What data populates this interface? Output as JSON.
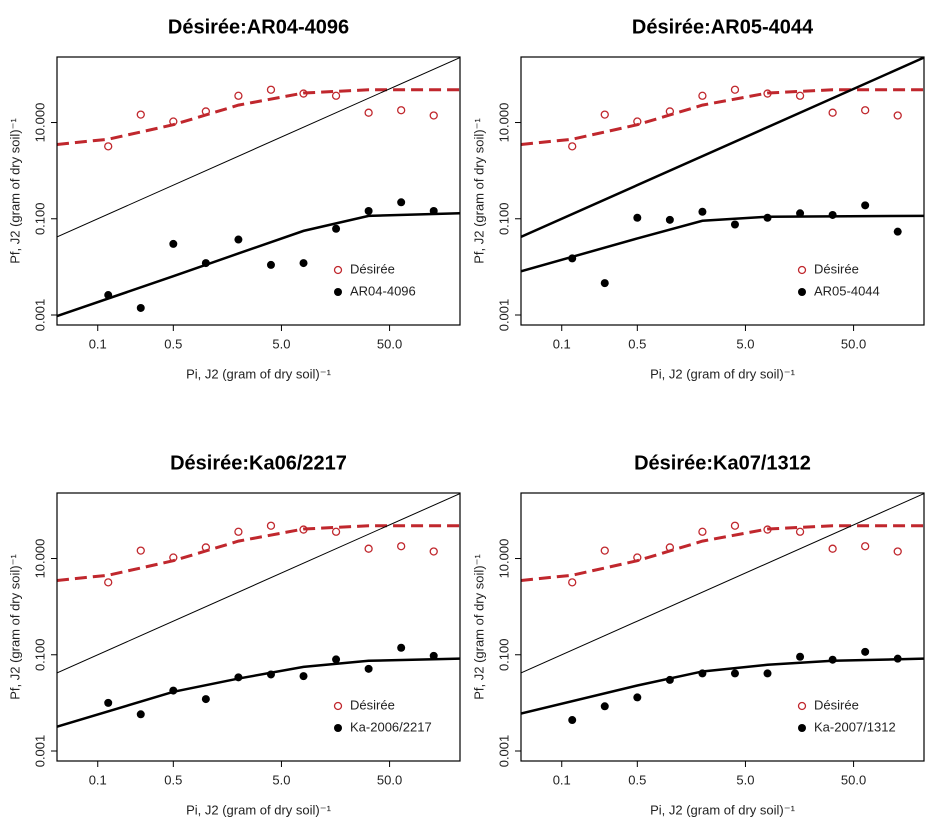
{
  "chart_data": [
    {
      "type": "scatter",
      "title": "Désirée:AR04-4096",
      "xlabel": "Pi, J2 (gram of dry soil)⁻¹",
      "ylabel": "Pf, J2 (gram of dry soil)⁻¹",
      "xscale": "log",
      "yscale": "log",
      "xlim": [
        0.042,
        224
      ],
      "ylim": [
        0.00062,
        230
      ],
      "xticks": [
        0.1,
        0.5,
        {
          "value": 5,
          "label": "5.0"
        },
        {
          "value": 50,
          "label": "50.0"
        }
      ],
      "yticks": [
        0.001,
        {
          "value": 0.1,
          "label": "0.100"
        },
        {
          "value": 10,
          "label": "10.000"
        }
      ],
      "legend": "bottom-right",
      "x": [
        0.125,
        0.25,
        0.5,
        1,
        2,
        4,
        8,
        16,
        32,
        64,
        128
      ],
      "series": [
        {
          "name": "Désirée",
          "color": "#c0272d",
          "marker": "open",
          "values": [
            3.2,
            14.6,
            10.5,
            17,
            36,
            48,
            40,
            36,
            16,
            18,
            14
          ]
        },
        {
          "name": "AR04-4096",
          "color": "#000000",
          "marker": "filled",
          "values": [
            0.0026,
            0.0014,
            0.03,
            0.012,
            0.037,
            0.011,
            0.012,
            0.062,
            0.145,
            0.22,
            0.145
          ]
        }
      ],
      "curves": [
        {
          "color": "#c0272d",
          "dash": true,
          "width": 3,
          "x": [
            0.042,
            0.125,
            0.5,
            2,
            8,
            32,
            224
          ],
          "values": [
            3.5,
            4.5,
            9,
            23,
            41,
            48,
            48
          ]
        },
        {
          "color": "#000000",
          "dash": false,
          "width": 2.5,
          "x": [
            0.042,
            0.5,
            2,
            8,
            32,
            224
          ],
          "values": [
            0.00095,
            0.0064,
            0.019,
            0.056,
            0.115,
            0.13
          ]
        },
        {
          "color": "#000000",
          "dash": false,
          "width": 1,
          "x": [
            0.042,
            224
          ],
          "values": [
            0.042,
            224
          ]
        }
      ]
    },
    {
      "type": "scatter",
      "title": "Désirée:AR05-4044",
      "xlabel": "Pi, J2 (gram of dry soil)⁻¹",
      "ylabel": "Pf, J2 (gram of dry soil)⁻¹",
      "xscale": "log",
      "yscale": "log",
      "xlim": [
        0.042,
        224
      ],
      "ylim": [
        0.00062,
        230
      ],
      "xticks": [
        0.1,
        0.5,
        {
          "value": 5,
          "label": "5.0"
        },
        {
          "value": 50,
          "label": "50.0"
        }
      ],
      "yticks": [
        0.001,
        {
          "value": 0.1,
          "label": "0.100"
        },
        {
          "value": 10,
          "label": "10.000"
        }
      ],
      "legend": "bottom-right",
      "x": [
        0.125,
        0.25,
        0.5,
        1,
        2,
        4,
        8,
        16,
        32,
        64,
        128
      ],
      "series": [
        {
          "name": "Désirée",
          "color": "#c0272d",
          "marker": "open",
          "values": [
            3.2,
            14.6,
            10.5,
            17,
            36,
            48,
            40,
            36,
            16,
            18,
            14
          ]
        },
        {
          "name": "AR05-4044",
          "color": "#000000",
          "marker": "filled",
          "values": [
            0.015,
            0.0046,
            0.105,
            0.095,
            0.14,
            0.076,
            0.105,
            0.13,
            0.12,
            0.19,
            0.054
          ]
        }
      ],
      "curves": [
        {
          "color": "#c0272d",
          "dash": true,
          "width": 3,
          "x": [
            0.042,
            0.125,
            0.5,
            2,
            8,
            32,
            224
          ],
          "values": [
            3.5,
            4.5,
            9,
            23,
            41,
            48,
            48
          ]
        },
        {
          "color": "#000000",
          "dash": false,
          "width": 2.5,
          "x": [
            0.042,
            0.5,
            2,
            8,
            224
          ],
          "values": [
            0.0081,
            0.039,
            0.091,
            0.11,
            0.115
          ]
        },
        {
          "color": "#000000",
          "dash": false,
          "width": 2.5,
          "x": [
            0.042,
            224
          ],
          "values": [
            0.042,
            224
          ]
        }
      ]
    },
    {
      "type": "scatter",
      "title": "Désirée:Ka06/2217",
      "xlabel": "Pi, J2 (gram of dry soil)⁻¹",
      "ylabel": "Pf, J2 (gram of dry soil)⁻¹",
      "xscale": "log",
      "yscale": "log",
      "xlim": [
        0.042,
        224
      ],
      "ylim": [
        0.00062,
        230
      ],
      "xticks": [
        0.1,
        0.5,
        {
          "value": 5,
          "label": "5.0"
        },
        {
          "value": 50,
          "label": "50.0"
        }
      ],
      "yticks": [
        0.001,
        {
          "value": 0.1,
          "label": "0.100"
        },
        {
          "value": 10,
          "label": "10.000"
        }
      ],
      "legend": "bottom-right",
      "x": [
        0.125,
        0.25,
        0.5,
        1,
        2,
        4,
        8,
        16,
        32,
        64,
        128
      ],
      "series": [
        {
          "name": "Désirée",
          "color": "#c0272d",
          "marker": "open",
          "values": [
            3.2,
            14.6,
            10.5,
            17,
            36,
            48,
            40,
            36,
            16,
            18,
            14
          ]
        },
        {
          "name": "Ka-2006/2217",
          "color": "#000000",
          "marker": "filled",
          "values": [
            0.01,
            0.0058,
            0.018,
            0.012,
            0.034,
            0.039,
            0.036,
            0.08,
            0.051,
            0.14,
            0.095
          ]
        }
      ],
      "curves": [
        {
          "color": "#c0272d",
          "dash": true,
          "width": 3,
          "x": [
            0.042,
            0.125,
            0.5,
            2,
            8,
            32,
            224
          ],
          "values": [
            3.5,
            4.5,
            9,
            23,
            41,
            48,
            48
          ]
        },
        {
          "color": "#000000",
          "dash": false,
          "width": 2.5,
          "x": [
            0.042,
            0.5,
            2,
            8,
            32,
            224
          ],
          "values": [
            0.0032,
            0.017,
            0.032,
            0.056,
            0.075,
            0.083
          ]
        },
        {
          "color": "#000000",
          "dash": false,
          "width": 1,
          "x": [
            0.042,
            224
          ],
          "values": [
            0.042,
            224
          ]
        }
      ]
    },
    {
      "type": "scatter",
      "title": "Désirée:Ka07/1312",
      "xlabel": "Pi, J2 (gram of dry soil)⁻¹",
      "ylabel": "Pf, J2 (gram of dry soil)⁻¹",
      "xscale": "log",
      "yscale": "log",
      "xlim": [
        0.042,
        224
      ],
      "ylim": [
        0.00062,
        230
      ],
      "xticks": [
        0.1,
        0.5,
        {
          "value": 5,
          "label": "5.0"
        },
        {
          "value": 50,
          "label": "50.0"
        }
      ],
      "yticks": [
        0.001,
        {
          "value": 0.1,
          "label": "0.100"
        },
        {
          "value": 10,
          "label": "10.000"
        }
      ],
      "legend": "bottom-right",
      "x": [
        0.125,
        0.25,
        0.5,
        1,
        2,
        4,
        8,
        16,
        32,
        64,
        128
      ],
      "series": [
        {
          "name": "Désirée",
          "color": "#c0272d",
          "marker": "open",
          "values": [
            3.2,
            14.6,
            10.5,
            17,
            36,
            48,
            40,
            36,
            16,
            18,
            14
          ]
        },
        {
          "name": "Ka-2007/1312",
          "color": "#000000",
          "marker": "filled",
          "values": [
            0.0044,
            0.0085,
            0.013,
            0.03,
            0.041,
            0.041,
            0.041,
            0.091,
            0.079,
            0.115,
            0.083
          ]
        }
      ],
      "curves": [
        {
          "color": "#c0272d",
          "dash": true,
          "width": 3,
          "x": [
            0.042,
            0.125,
            0.5,
            2,
            8,
            32,
            224
          ],
          "values": [
            3.5,
            4.5,
            9,
            23,
            41,
            48,
            48
          ]
        },
        {
          "color": "#000000",
          "dash": false,
          "width": 2.5,
          "x": [
            0.042,
            0.5,
            2,
            8,
            32,
            224
          ],
          "values": [
            0.006,
            0.023,
            0.045,
            0.062,
            0.075,
            0.083
          ]
        },
        {
          "color": "#000000",
          "dash": false,
          "width": 1,
          "x": [
            0.042,
            224
          ],
          "values": [
            0.042,
            224
          ]
        }
      ]
    }
  ]
}
